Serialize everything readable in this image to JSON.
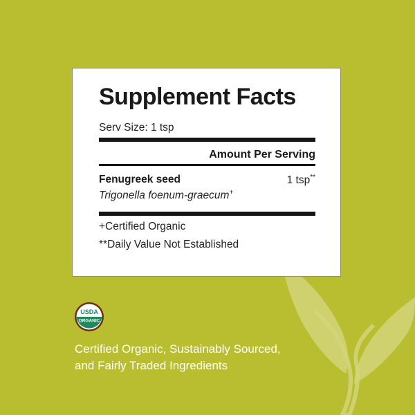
{
  "colors": {
    "background": "#b9be31",
    "panel": "#ffffff",
    "text": "#1a1a1a",
    "usda_green": "#1d8a5c",
    "usda_brown": "#6b2e12"
  },
  "facts": {
    "title": "Supplement Facts",
    "serving_size": "Serv Size: 1 tsp",
    "amount_header": "Amount Per Serving",
    "ingredient": {
      "name": "Fenugreek seed",
      "amount": "1 tsp",
      "amount_mark": "**",
      "scientific_name": "Trigonella foenum-graecum",
      "scientific_mark": "+"
    },
    "footnotes": [
      "+Certified Organic",
      "**Daily Value Not Established"
    ]
  },
  "logo": {
    "top": "USDA",
    "bottom": "ORGANIC",
    "icon": "usda-organic-seal"
  },
  "tagline": [
    "Certified Organic, Sustainably Sourced,",
    "and Fairly Traded Ingredients"
  ]
}
